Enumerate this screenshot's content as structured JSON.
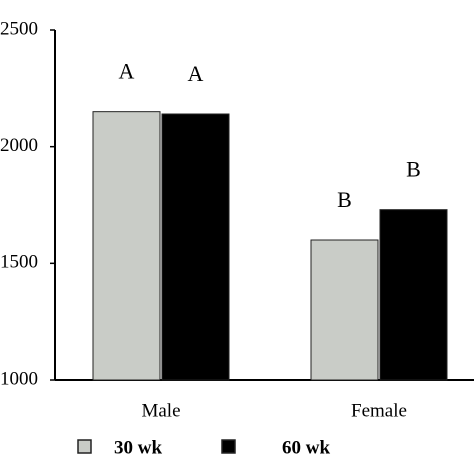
{
  "chart_data": {
    "type": "bar",
    "categories": [
      "Male",
      "Female"
    ],
    "series": [
      {
        "name": "30 wk",
        "color": "#c9ccc7",
        "values": [
          2150,
          1600
        ],
        "annotations": [
          "A",
          "B"
        ]
      },
      {
        "name": "60 wk",
        "color": "#000000",
        "values": [
          2140,
          1730
        ],
        "annotations": [
          "A",
          "B"
        ]
      }
    ],
    "ylim": [
      1000,
      2500
    ],
    "yticks": [
      1000,
      1500,
      2000,
      2500
    ],
    "grid": false
  }
}
